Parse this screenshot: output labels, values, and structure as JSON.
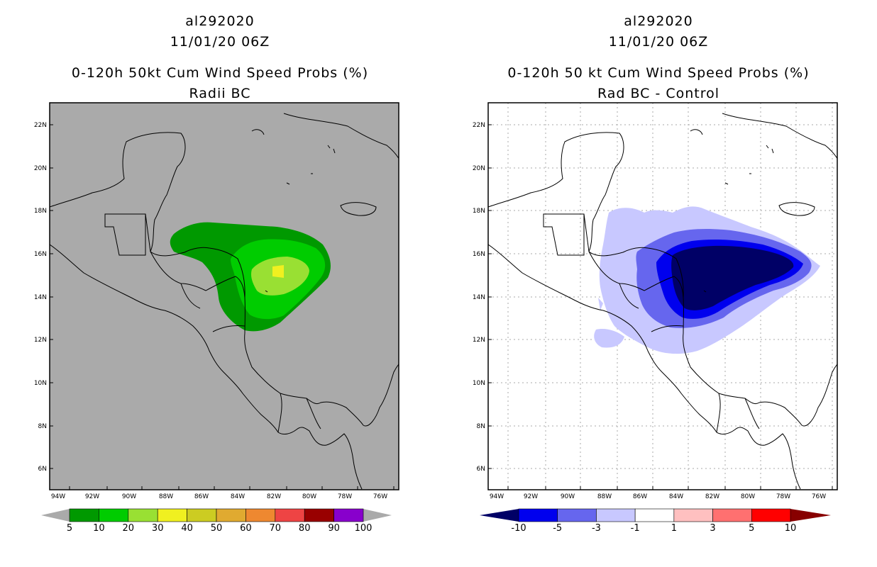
{
  "left_panel": {
    "storm_id": "al292020",
    "datetime": "11/01/20 06Z",
    "title": "0-120h 50kt Cum Wind Speed Probs (%)",
    "subtitle": "Radii BC",
    "colorbar": {
      "labels": [
        "5",
        "10",
        "20",
        "30",
        "40",
        "50",
        "60",
        "70",
        "80",
        "90",
        "100"
      ],
      "colors": [
        "#009900",
        "#00cc00",
        "#99e033",
        "#f0f020",
        "#cccc22",
        "#e0aa30",
        "#ee8830",
        "#ee4444",
        "#990000",
        "#8800cc"
      ],
      "under_color": "#aaaaaa",
      "over_color": "#aaaaaa"
    }
  },
  "right_panel": {
    "storm_id": "al292020",
    "datetime": "11/01/20 06Z",
    "title": "0-120h 50 kt Cum Wind Speed Probs (%)",
    "subtitle": "Rad BC - Control",
    "colorbar": {
      "labels": [
        "-10",
        "-5",
        "-3",
        "-1",
        "1",
        "3",
        "5",
        "10"
      ],
      "colors": [
        "#0000ee",
        "#6666ee",
        "#c8c8ff",
        "#ffffff",
        "#ffc0c0",
        "#ff7070",
        "#ff0000"
      ],
      "under_color": "#000066",
      "over_color": "#880000"
    }
  },
  "map": {
    "lat_labels": [
      "22N",
      "20N",
      "18N",
      "16N",
      "14N",
      "12N",
      "10N",
      "8N",
      "6N"
    ],
    "lon_labels": [
      "94W",
      "92W",
      "90W",
      "88W",
      "86W",
      "84W",
      "82W",
      "80W",
      "78W",
      "76W"
    ]
  },
  "colors": {
    "land_background_left": "#aaaaaa",
    "grid": "#aaaaaa"
  }
}
